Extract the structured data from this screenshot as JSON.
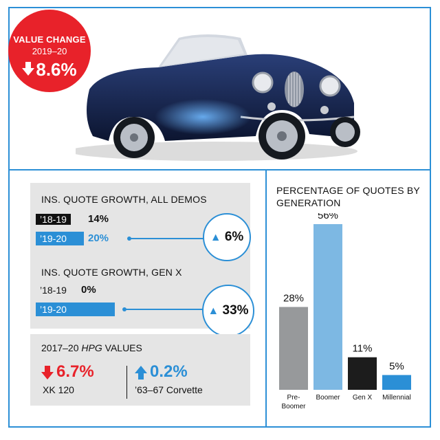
{
  "badge": {
    "line1": "VALUE CHANGE",
    "line2": "2019–20",
    "value": "8.6%",
    "arrow": "down-arrow-icon",
    "color": "#e8222a"
  },
  "quote_growth_all": {
    "title": "INS. QUOTE GROWTH, ALL DEMOS",
    "row1_label": "’18-19",
    "row1_value": "14%",
    "row2_label": "’19-20",
    "row2_value": "20%",
    "change": "6%",
    "row2_bar_value": 20
  },
  "quote_growth_genx": {
    "title": "INS. QUOTE GROWTH, GEN X",
    "row1_label": "’18-19",
    "row1_value": "0%",
    "row2_label": "’19-20",
    "row2_value": "33%",
    "change": "33%",
    "row2_bar_value": 33
  },
  "hpg": {
    "title_prefix": "2017–20 ",
    "title_italic": "HPG",
    "title_suffix": " VALUES",
    "left_value": "6.7%",
    "left_name": "XK 120",
    "left_color": "#e8222a",
    "right_value": "0.2%",
    "right_name": "’63–67 Corvette",
    "right_color": "#2b8fd6"
  },
  "colors": {
    "accent_blue": "#2b8fd6",
    "red": "#e8222a",
    "panel_grey": "#e5e5e5"
  },
  "chart_data": {
    "type": "bar",
    "title": "PERCENTAGE OF QUOTES BY GENERATION",
    "categories": [
      "Pre-Boomer",
      "Boomer",
      "Gen X",
      "Millennial"
    ],
    "category_lines": [
      [
        "Pre-",
        "Boomer"
      ],
      [
        "Boomer"
      ],
      [
        "Gen X"
      ],
      [
        "Millennial"
      ]
    ],
    "values": [
      28,
      56,
      11,
      5
    ],
    "value_labels": [
      "28%",
      "56%",
      "11%",
      "5%"
    ],
    "colors": [
      "#97999b",
      "#7db8e3",
      "#1c1c1c",
      "#2b8fd6"
    ],
    "ylim": [
      0,
      56
    ],
    "grid": false
  }
}
